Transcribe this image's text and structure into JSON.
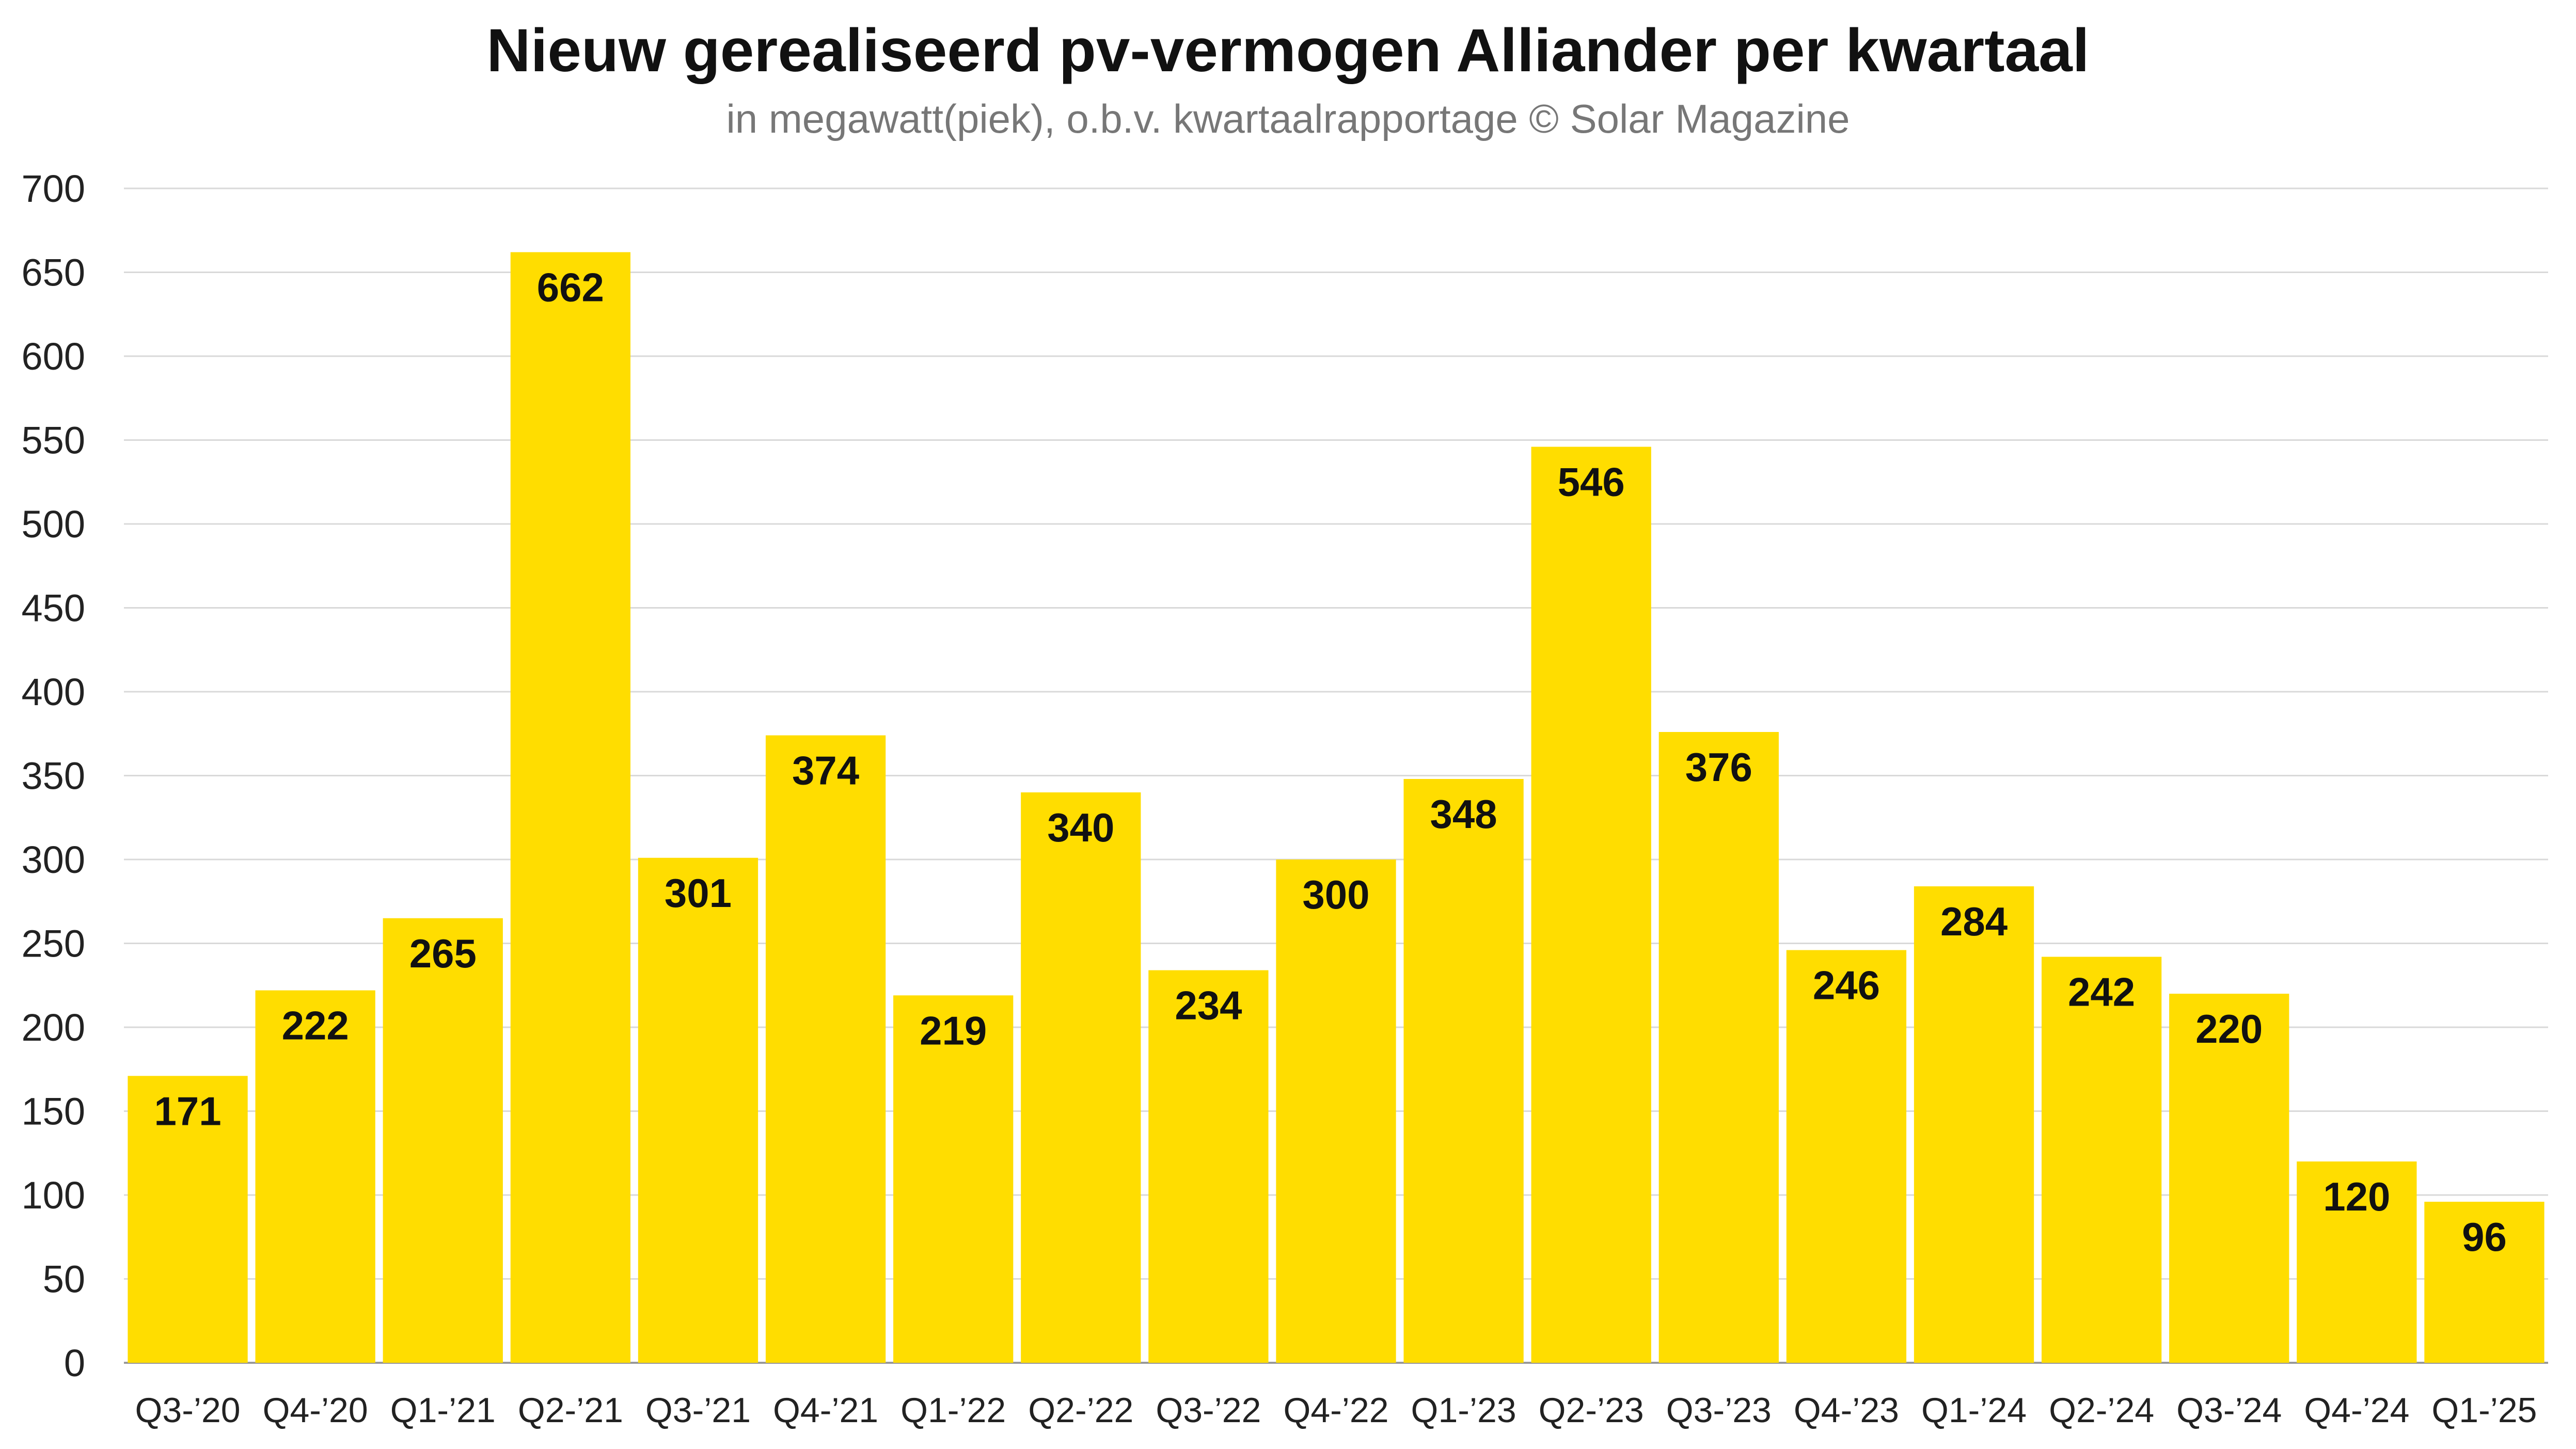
{
  "chart_data": {
    "type": "bar",
    "title": "Nieuw gerealiseerd pv-vermogen Alliander per kwartaal",
    "subtitle": "in megawatt(piek), o.b.v. kwartaalrapportage  © Solar Magazine",
    "xlabel": "",
    "ylabel": "",
    "ylim": [
      0,
      700
    ],
    "yticks": [
      0,
      50,
      100,
      150,
      200,
      250,
      300,
      350,
      400,
      450,
      500,
      550,
      600,
      650,
      700
    ],
    "grid": true,
    "bar_color": "#FFDD00",
    "categories": [
      "Q3-’20",
      "Q4-’20",
      "Q1-’21",
      "Q2-’21",
      "Q3-’21",
      "Q4-’21",
      "Q1-’22",
      "Q2-’22",
      "Q3-’22",
      "Q4-’22",
      "Q1-’23",
      "Q2-’23",
      "Q3-’23",
      "Q4-’23",
      "Q1-’24",
      "Q2-’24",
      "Q3-’24",
      "Q4-’24",
      "Q1-’25"
    ],
    "values": [
      171,
      222,
      265,
      662,
      301,
      374,
      219,
      340,
      234,
      300,
      348,
      546,
      376,
      246,
      284,
      242,
      220,
      120,
      96
    ]
  }
}
